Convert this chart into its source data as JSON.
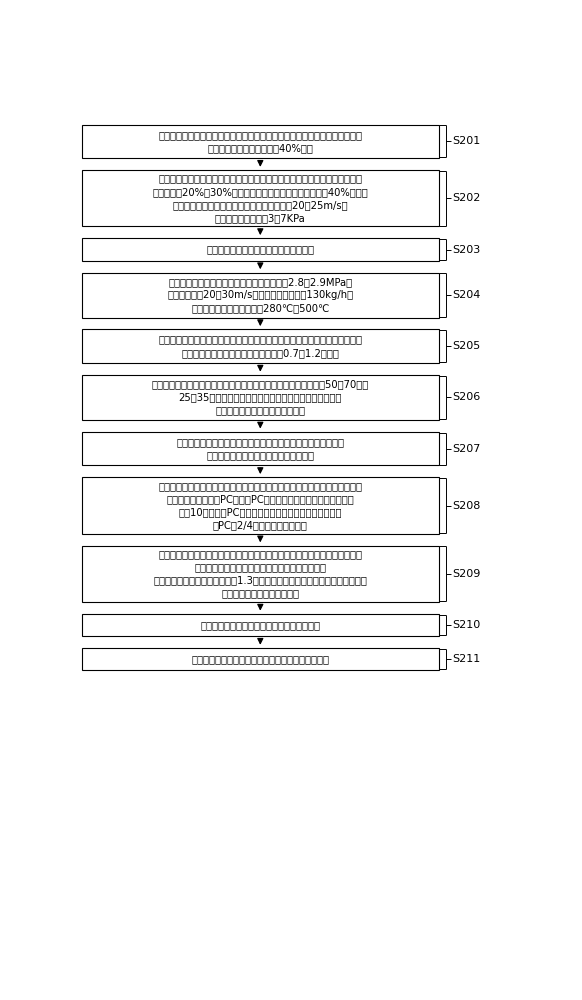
{
  "boxes": [
    {
      "id": "S201",
      "label": "S201",
      "text": "首次使用微油燃烧器点火前，启动预热器、吸风机和送风机，将炉内通风量调\n整至锅炉最大连续蒸发量的40%以上",
      "lines": 2
    },
    {
      "id": "S202",
      "label": "S202",
      "text": "首次使用微油燃烧器点火时，关闭微油燃烧器周界风门，一级燃烧器的二次风\n门的开度为20%～30%，其它级燃烧器的二次风门的开度为40%以上；\n一级燃烧器对应的磨煤机的一次风管的风速为20～25m/s；\n一次风母管的压力为3～7KPa",
      "lines": 4
    },
    {
      "id": "S203",
      "label": "S203",
      "text": "在使用微油燃烧器点火前，启动一次风机",
      "lines": 1
    },
    {
      "id": "S204",
      "label": "S204",
      "text": "在使用微油燃烧器点火时，供油母管的油压为2.8～2.9MPa，\n一次风风速为20～30m/s，微油燃烧器出力为130kg/h；\n微油燃烧器壁温温度控制在280℃～500℃",
      "lines": 3
    },
    {
      "id": "S205",
      "label": "S205",
      "text": "在使用微油燃烧器点火时，一次风机启动后若一级燃烧器对应的制粉系统未启\n动，则将微油燃烧器的运行时间控制在0.7～1.2小时内",
      "lines": 2
    },
    {
      "id": "S206",
      "label": "S206",
      "text": "在使用微油燃烧器点火时，监测微油燃烧器的火检值，若火检值由50～70降至\n25～35，则停用对应的角油枪，拆下并吹扫油枪雾化片，\n清理微油可见光火检探头和过滤器",
      "lines": 3
    },
    {
      "id": "S207",
      "label": "S207",
      "text": "在使用微油燃烧器点火时，若一级燃烧器对应的磨煤机内有煤，\n则先点燃微油，再启动通风管道和磨煤机",
      "lines": 2
    },
    {
      "id": "S208",
      "label": "S208",
      "text": "在一级燃烧器对应磨煤机处于微油点火模式时，若一角油枪灭火，则联关该角\n油枪对应的磨煤机的PC阀，该PC阀对应的第二只角油枪正常运行，\n若在10分钟内该PC阀仍未打开，则将第二只角油枪跳闸，\n将PC阀2/4关闭，跳闸该磨煤机",
      "lines": 4
    },
    {
      "id": "S209",
      "label": "S209",
      "text": "当锅炉当前负荷超过锅炉最低稳燃负荷且炉膛内负压稳定时，将一级燃烧器对\n应的磨煤机由微油点火模式切换至正常燃烧模式；\n当锅炉负荷升至最低稳燃负荷的1.3倍时，一级燃烧器对应的磨煤机自动由微油\n点火模式切换至正常燃烧模式",
      "lines": 4
    },
    {
      "id": "S210",
      "label": "S210",
      "text": "当停止运行锅炉时前，吹扫所有的一次风风管",
      "lines": 1
    },
    {
      "id": "S211",
      "label": "S211",
      "text": "定期清理配风器，检查配风器内及燃烧器内是否结焦",
      "lines": 1
    }
  ],
  "bg_color": "#ffffff",
  "box_bg": "#ffffff",
  "box_border": "#000000",
  "arrow_color": "#000000",
  "label_color": "#000000",
  "text_color": "#000000",
  "font_size": 7.2,
  "label_font_size": 8.0
}
